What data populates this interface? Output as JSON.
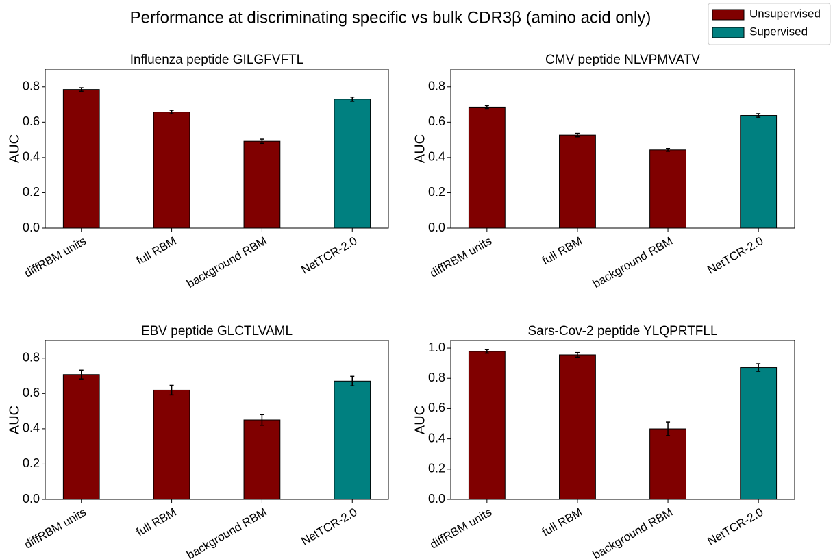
{
  "title": "Performance at discriminating specific vs bulk CDR3β (amino acid only)",
  "legend": [
    {
      "name": "Unsupervised",
      "color": "#800000"
    },
    {
      "name": "Supervised",
      "color": "#008080"
    }
  ],
  "chart_data": [
    {
      "type": "bar",
      "title": "Influenza peptide GILGFVFTL",
      "ylabel": "AUC",
      "categories": [
        "diffRBM units",
        "full RBM",
        "background RBM",
        "NetTCR-2.0"
      ],
      "values": [
        0.785,
        0.657,
        0.492,
        0.73
      ],
      "errors": [
        0.01,
        0.01,
        0.012,
        0.012
      ],
      "colors": [
        "#800000",
        "#800000",
        "#800000",
        "#008080"
      ],
      "ylim": [
        0,
        0.9
      ],
      "yticks": [
        {
          "value": 0,
          "label": "0.0"
        },
        0.2,
        0.4,
        0.6,
        0.8
      ]
    },
    {
      "type": "bar",
      "title": "CMV peptide NLVPMVATV",
      "ylabel": "AUC",
      "categories": [
        "diffRBM units",
        "full RBM",
        "background RBM",
        "NetTCR-2.0"
      ],
      "values": [
        0.685,
        0.527,
        0.443,
        0.638
      ],
      "errors": [
        0.008,
        0.01,
        0.008,
        0.01
      ],
      "colors": [
        "#800000",
        "#800000",
        "#800000",
        "#008080"
      ],
      "ylim": [
        0,
        0.9
      ],
      "yticks": [
        {
          "value": 0,
          "label": "0.0"
        },
        0.2,
        0.4,
        0.6,
        0.8
      ]
    },
    {
      "type": "bar",
      "title": "EBV peptide GLCTLVAML",
      "ylabel": "AUC",
      "categories": [
        "diffRBM units",
        "full RBM",
        "background RBM",
        "NetTCR-2.0"
      ],
      "values": [
        0.707,
        0.619,
        0.45,
        0.67
      ],
      "errors": [
        0.025,
        0.027,
        0.03,
        0.027
      ],
      "colors": [
        "#800000",
        "#800000",
        "#800000",
        "#008080"
      ],
      "ylim": [
        0,
        0.9
      ],
      "yticks": [
        {
          "value": 0,
          "label": "0.0"
        },
        0.2,
        0.4,
        0.6,
        0.8
      ]
    },
    {
      "type": "bar",
      "title": "Sars-Cov-2 peptide YLQPRTFLL",
      "ylabel": "AUC",
      "categories": [
        "diffRBM units",
        "full RBM",
        "background RBM",
        "NetTCR-2.0"
      ],
      "values": [
        0.978,
        0.955,
        0.466,
        0.871
      ],
      "errors": [
        0.012,
        0.015,
        0.045,
        0.025
      ],
      "colors": [
        "#800000",
        "#800000",
        "#800000",
        "#008080"
      ],
      "ylim": [
        0,
        1.05
      ],
      "yticks": [
        {
          "value": 0,
          "label": "0.0"
        },
        0.2,
        0.4,
        0.6,
        0.8,
        {
          "value": 1,
          "label": "1.0"
        }
      ]
    }
  ]
}
